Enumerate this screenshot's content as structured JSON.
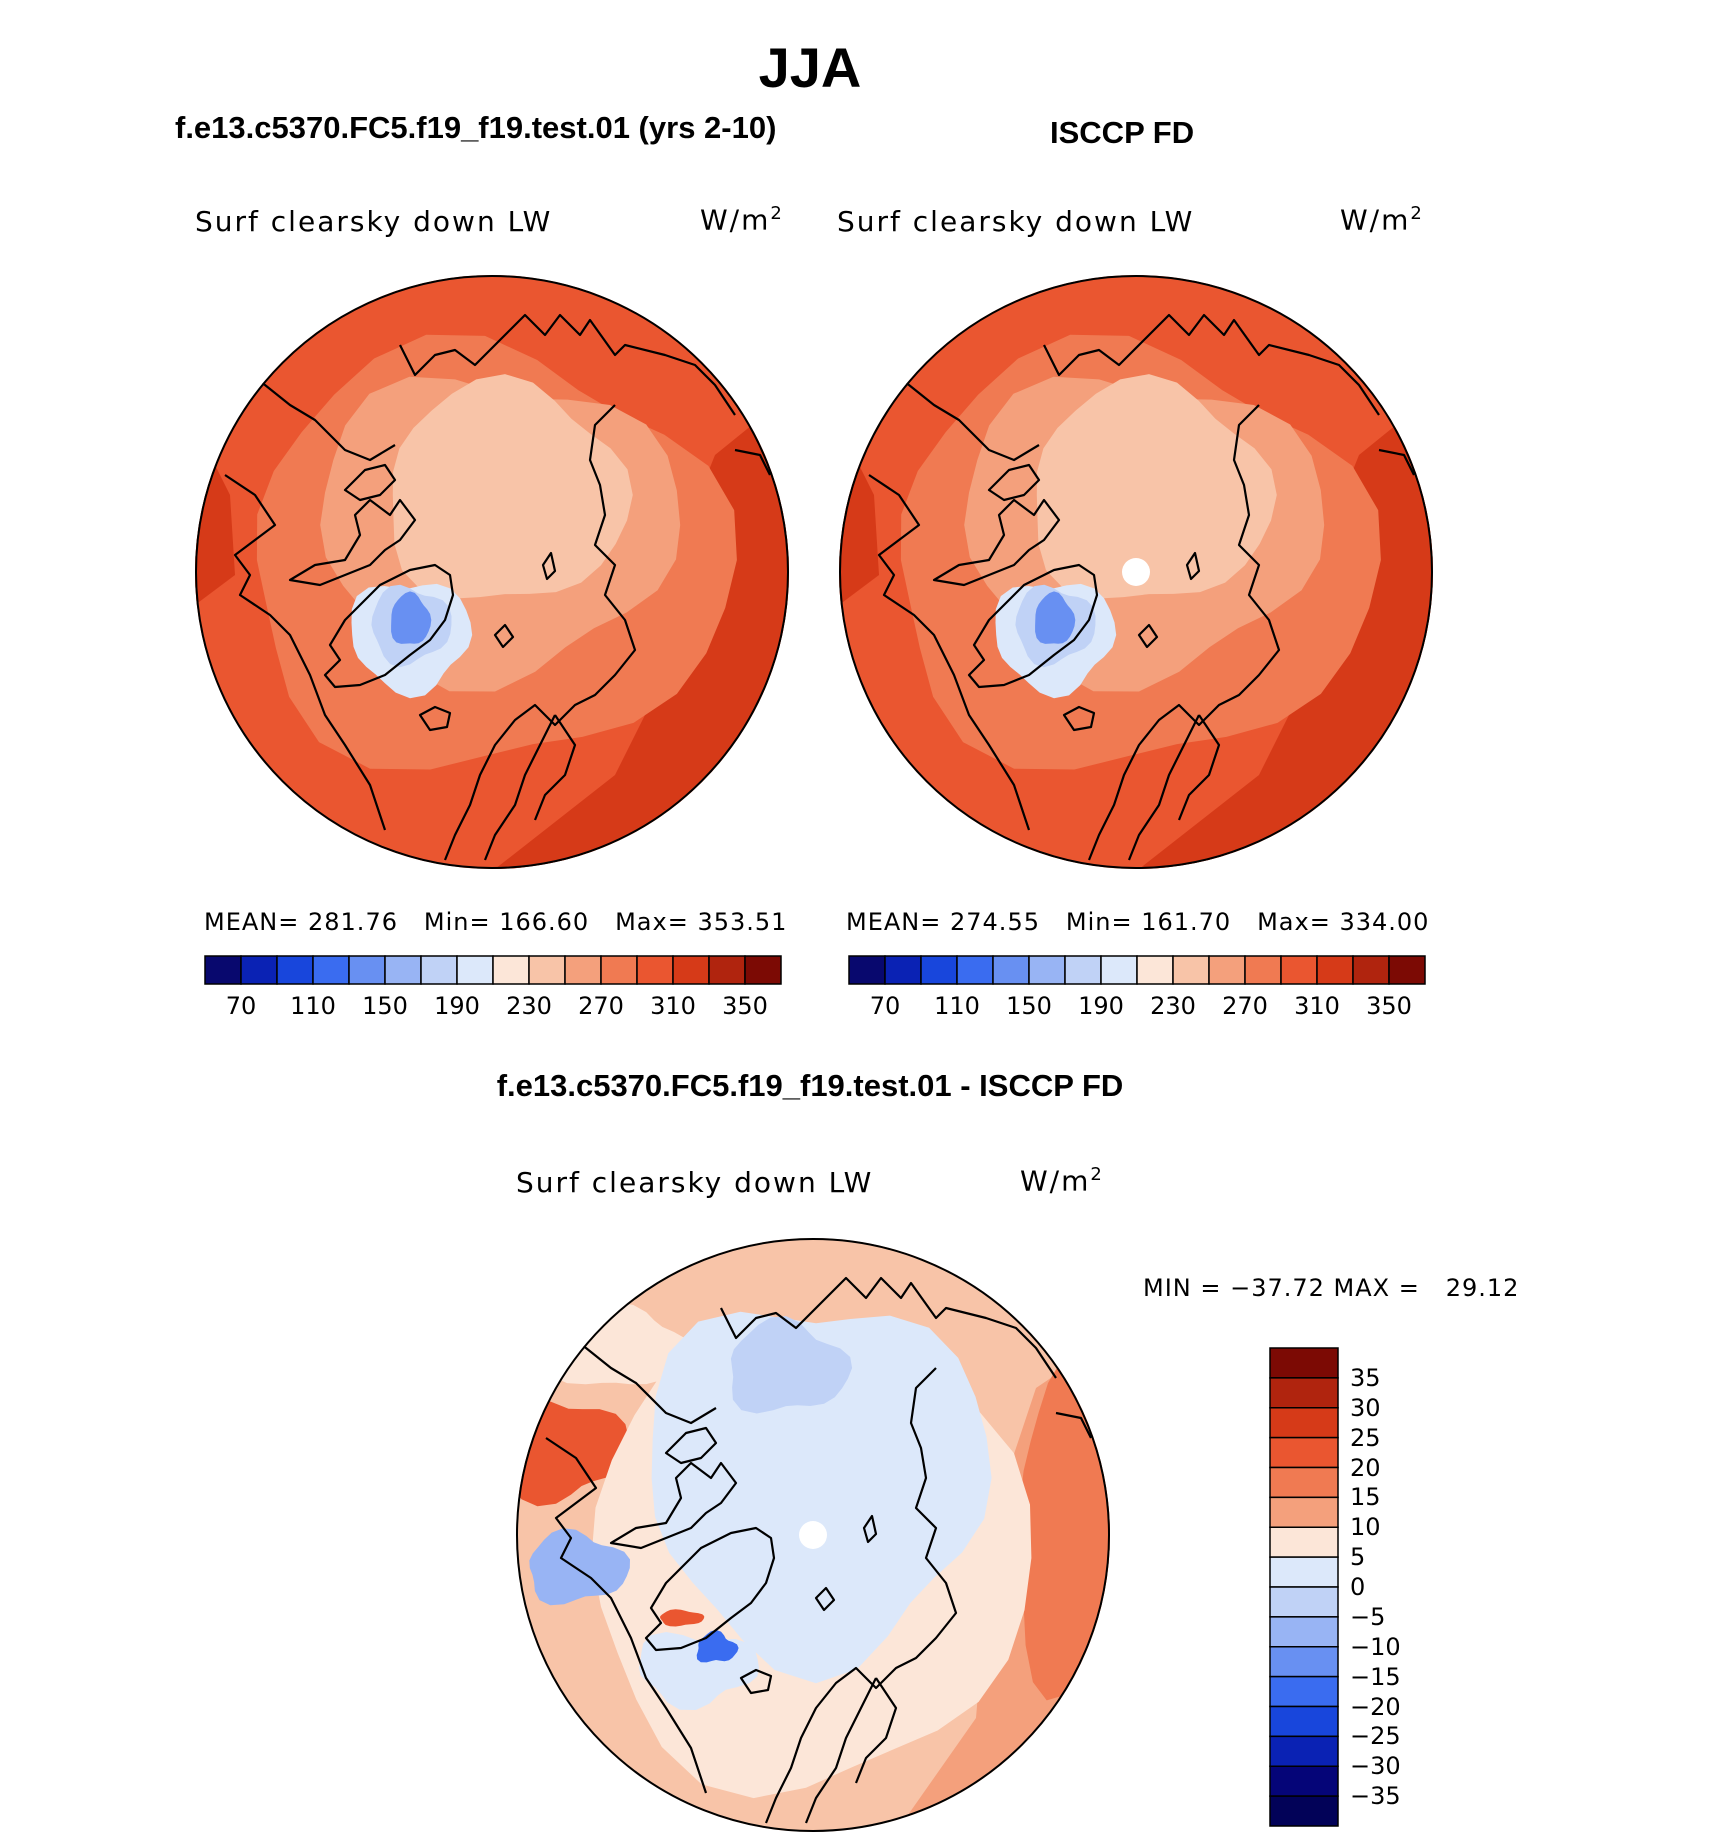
{
  "season": "JJA",
  "panels": [
    {
      "id": "model",
      "title": "f.e13.c5370.FC5.f19_f19.test.01 (yrs 2-10)",
      "variable": "Surf clearsky down LW",
      "units": "W/m",
      "units_sup": "2",
      "stats": {
        "mean_label": "MEAN=",
        "mean": "281.76",
        "min_label": "Min=",
        "min": "166.60",
        "max_label": "Max=",
        "max": "353.51"
      }
    },
    {
      "id": "obs",
      "title": "ISCCP FD",
      "variable": "Surf clearsky down LW",
      "units": "W/m",
      "units_sup": "2",
      "stats": {
        "mean_label": "MEAN=",
        "mean": "274.55",
        "min_label": "Min=",
        "min": "161.70",
        "max_label": "Max=",
        "max": "334.00"
      }
    },
    {
      "id": "diff",
      "title": "f.e13.c5370.FC5.f19_f19.test.01 - ISCCP FD",
      "variable": "Surf clearsky down LW",
      "units": "W/m",
      "units_sup": "2",
      "stats": {
        "text": "MIN = −37.72 MAX =   29.12"
      }
    }
  ],
  "abs_colorbar": {
    "colors": [
      "#08086e",
      "#0a22b4",
      "#1846dc",
      "#3a6cf0",
      "#6890f2",
      "#98b4f4",
      "#c0d2f6",
      "#dce8fa",
      "#fce6d8",
      "#f8c4a8",
      "#f4a07c",
      "#f07a52",
      "#ea5630",
      "#d63a18",
      "#b0240e",
      "#7c0a04"
    ],
    "labels": [
      "70",
      "110",
      "150",
      "190",
      "230",
      "270",
      "310",
      "350"
    ]
  },
  "diff_colorbar": {
    "colors": [
      "#7c0a04",
      "#b0240e",
      "#d63a18",
      "#ea5630",
      "#f07a52",
      "#f4a07c",
      "#fce6d8",
      "#dce8fa",
      "#c0d2f6",
      "#98b4f4",
      "#6890f2",
      "#3a6cf0",
      "#1846dc",
      "#0a22b4",
      "#050578",
      "#020258"
    ],
    "labels": [
      "35",
      "30",
      "25",
      "20",
      "15",
      "10",
      "5",
      "0",
      "−5",
      "−10",
      "−15",
      "−20",
      "−25",
      "−30",
      "−35"
    ]
  }
}
